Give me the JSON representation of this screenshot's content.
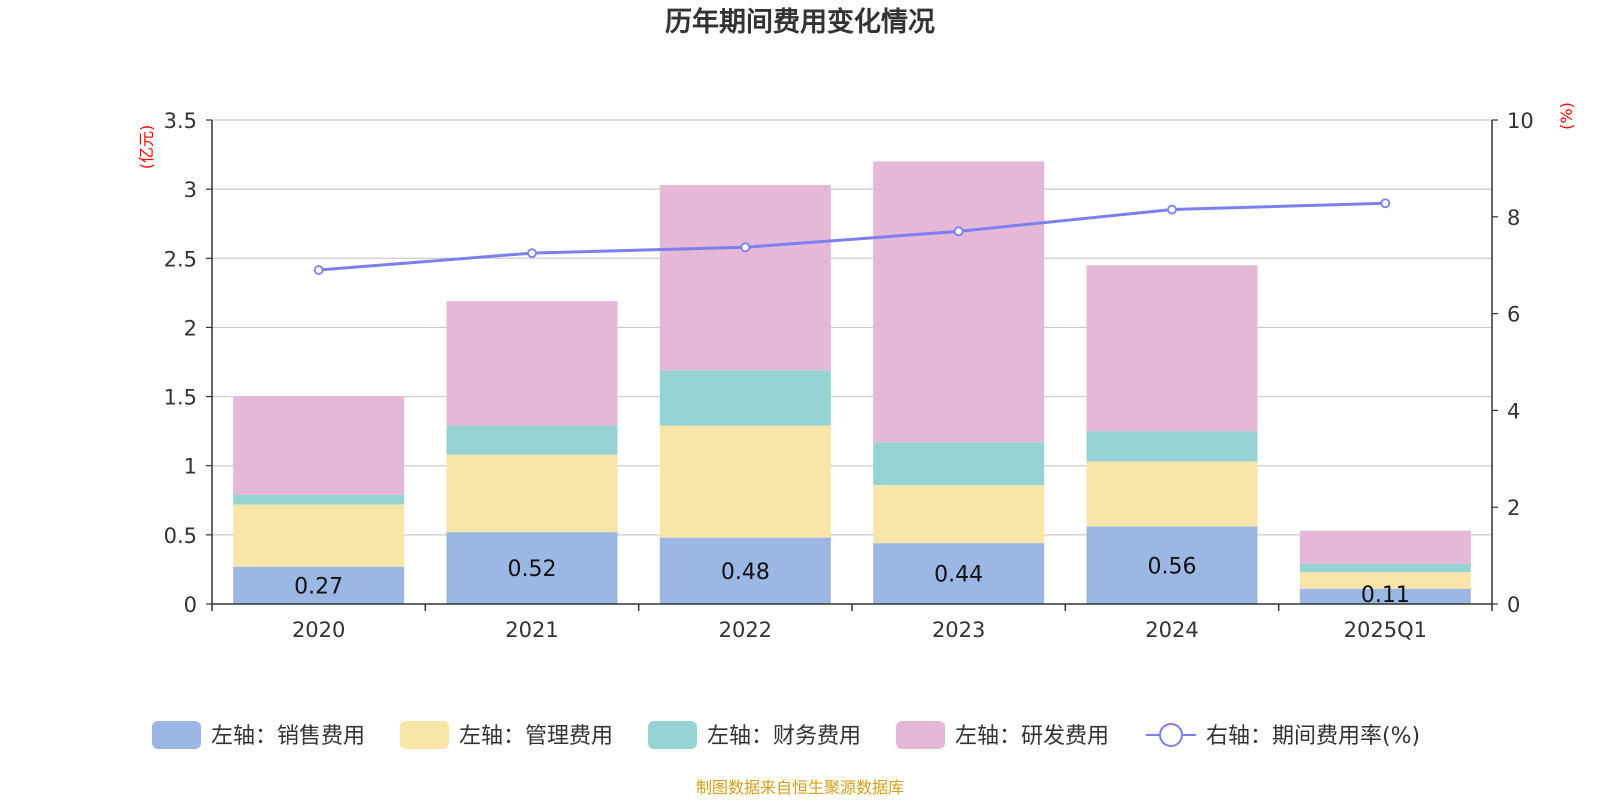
{
  "chart_data": {
    "type": "bar",
    "stacked": true,
    "title": "历年期间费用变化情况",
    "categories": [
      "2020",
      "2021",
      "2022",
      "2023",
      "2024",
      "2025Q1"
    ],
    "left_axis": {
      "unit": "(亿元)",
      "ylim": [
        0,
        3.5
      ],
      "ticks": [
        "0",
        "0.5",
        "1",
        "1.5",
        "2",
        "2.5",
        "3",
        "3.5"
      ],
      "tick_values": [
        0,
        0.5,
        1,
        1.5,
        2,
        2.5,
        3,
        3.5
      ]
    },
    "right_axis": {
      "unit": "(%)",
      "ylim": [
        0,
        10
      ],
      "ticks": [
        "0",
        "2",
        "4",
        "6",
        "8",
        "10"
      ],
      "tick_values": [
        0,
        2,
        4,
        6,
        8,
        10
      ]
    },
    "series": [
      {
        "name": "左轴：销售费用",
        "axis": "left",
        "color": "#9bb7e3",
        "values": [
          0.27,
          0.52,
          0.48,
          0.44,
          0.56,
          0.11
        ],
        "labels": [
          "0.27",
          "0.52",
          "0.48",
          "0.44",
          "0.56",
          "0.11"
        ]
      },
      {
        "name": "左轴：管理费用",
        "axis": "left",
        "color": "#f7e6a7",
        "values": [
          0.45,
          0.56,
          0.81,
          0.42,
          0.47,
          0.12
        ]
      },
      {
        "name": "左轴：财务费用",
        "axis": "left",
        "color": "#96d3d4",
        "values": [
          0.07,
          0.21,
          0.4,
          0.31,
          0.22,
          0.06
        ]
      },
      {
        "name": "左轴：研发费用",
        "axis": "left",
        "color": "#e6b8d8",
        "values": [
          0.71,
          0.9,
          1.34,
          2.03,
          1.2,
          0.24
        ]
      },
      {
        "name": "右轴：期间费用率(%)",
        "axis": "right",
        "type": "line",
        "color": "#7b7ff0",
        "values": [
          6.9,
          7.25,
          7.37,
          7.7,
          8.15,
          8.28
        ]
      }
    ],
    "source": "制图数据来自恒生聚源数据库"
  }
}
